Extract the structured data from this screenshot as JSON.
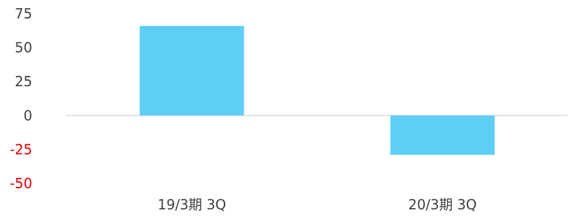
{
  "chart_data": {
    "type": "bar",
    "title": "",
    "xlabel": "",
    "ylabel": "",
    "categories": [
      "19/3期 3Q",
      "20/3期 3Q"
    ],
    "values": [
      66,
      -29
    ],
    "ylim": [
      -50,
      75
    ],
    "yticks": [
      75,
      50,
      25,
      0,
      -25,
      -50
    ],
    "grid": false,
    "legend": false,
    "colors": {
      "bar": "#5ecef4",
      "zero_line": "#d9d9d9",
      "tick_positive": "#404040",
      "tick_negative": "#e00000"
    }
  }
}
